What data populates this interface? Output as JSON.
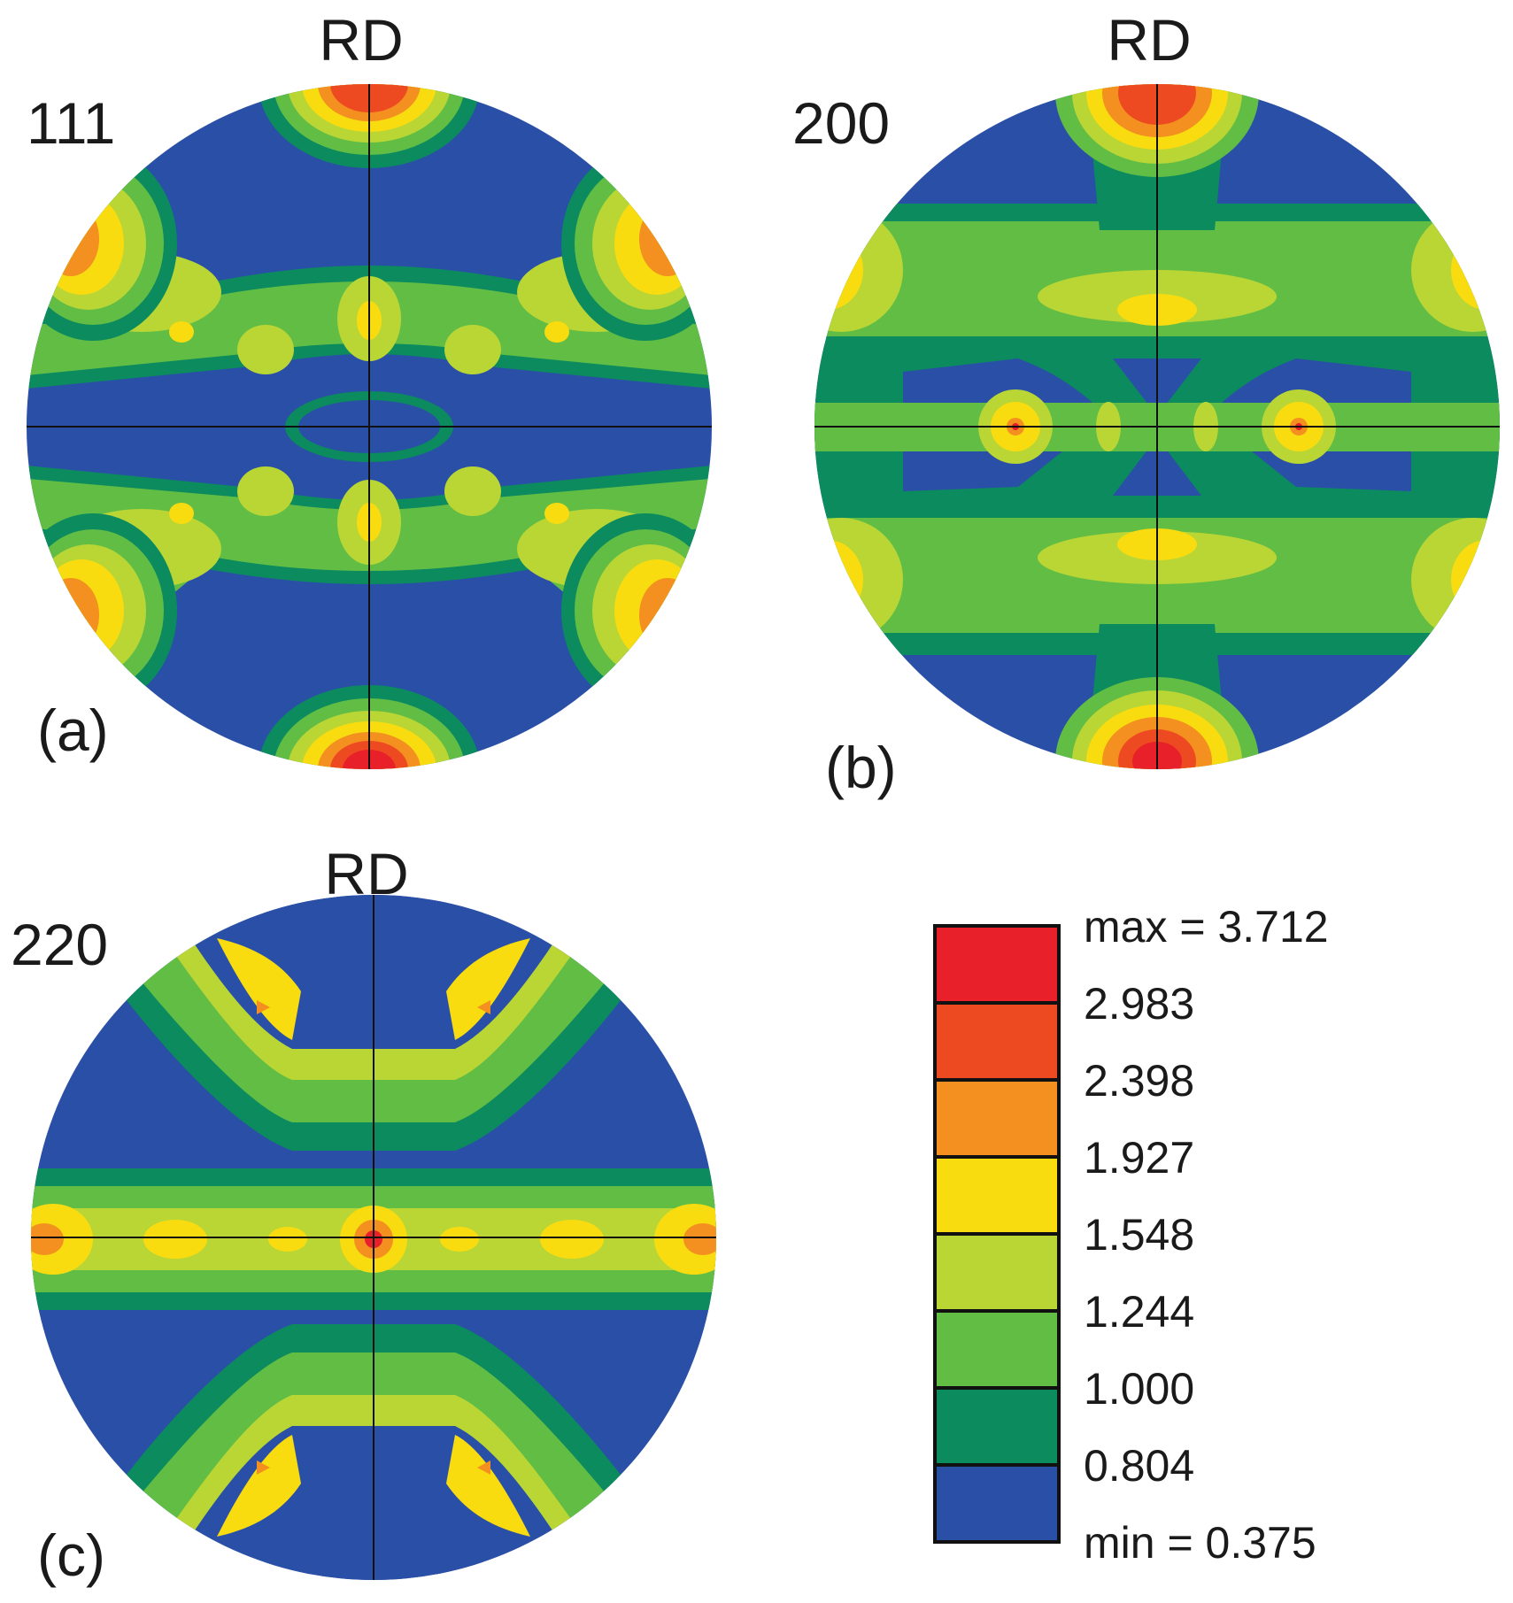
{
  "figures": [
    {
      "id": "a",
      "plane": "111",
      "direction": "RD",
      "panel_label": "(a)"
    },
    {
      "id": "b",
      "plane": "200",
      "direction": "RD",
      "panel_label": "(b)"
    },
    {
      "id": "c",
      "plane": "220",
      "direction": "RD",
      "panel_label": "(c)"
    }
  ],
  "legend": {
    "max_label": "max = 3.712",
    "min_label": "min = 0.375",
    "levels": [
      "2.983",
      "2.398",
      "1.927",
      "1.548",
      "1.244",
      "1.000",
      "0.804"
    ],
    "colors": [
      "#e8202a",
      "#ee4a22",
      "#f3901f",
      "#f8dc10",
      "#b9d635",
      "#62bd45",
      "#0b8b5e",
      "#2a4fa6"
    ]
  },
  "palette": {
    "blue": "#2a4fa6",
    "dark_green": "#0b8b5e",
    "green": "#62bd45",
    "light_green": "#b9d635",
    "yellow": "#f8dc10",
    "orange": "#f3901f",
    "red_orange": "#ee4a22",
    "red": "#e8202a"
  }
}
